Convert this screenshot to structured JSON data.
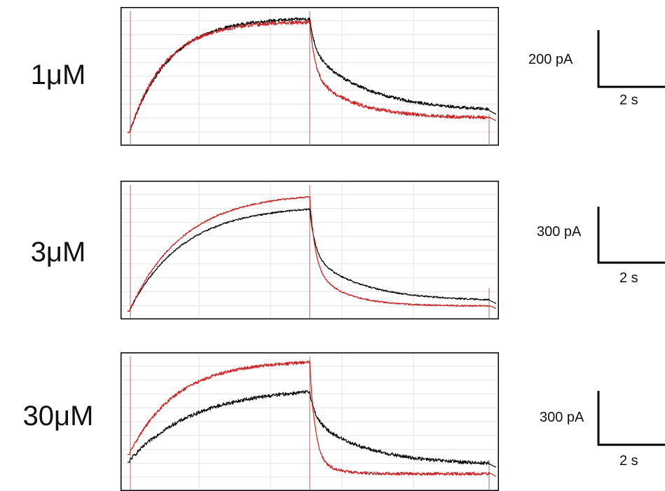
{
  "colors": {
    "control": "#000000",
    "treated": "#cc1f1f",
    "grid": "#e3e3e3",
    "stim": "#b06a6a",
    "frame": "#000000"
  },
  "panels": [
    {
      "label": "1μM",
      "scale_amp": "200 pA",
      "scale_time": "2 s"
    },
    {
      "label": "3μM",
      "scale_amp": "300 pA",
      "scale_time": "2 s"
    },
    {
      "label": "30μM",
      "scale_amp": "300 pA",
      "scale_time": "2 s"
    }
  ],
  "chart_data": [
    {
      "type": "line",
      "x_range": [
        0,
        10
      ],
      "y_range": [
        0,
        1
      ],
      "grid": true,
      "stimulus": [
        0,
        5
      ],
      "series": [
        {
          "color": "#000000",
          "baseline": 0.08,
          "peak": 0.95,
          "tau_rise": 1.1,
          "decay_end": 0.22,
          "tau_decay": 1.6,
          "fast_frac": 0.35,
          "noise": 0.012
        },
        {
          "color": "#cc1f1f",
          "baseline": 0.08,
          "peak": 0.92,
          "tau_rise": 1.0,
          "decay_end": 0.17,
          "tau_decay": 1.2,
          "fast_frac": 0.55,
          "noise": 0.014
        }
      ]
    },
    {
      "type": "line",
      "x_range": [
        0,
        10
      ],
      "y_range": [
        0,
        1
      ],
      "grid": true,
      "stimulus": [
        0,
        5
      ],
      "series": [
        {
          "color": "#000000",
          "baseline": 0.04,
          "peak": 0.84,
          "tau_rise": 1.5,
          "decay_end": 0.1,
          "tau_decay": 1.4,
          "fast_frac": 0.5,
          "noise": 0.006
        },
        {
          "color": "#cc1f1f",
          "baseline": 0.04,
          "peak": 0.94,
          "tau_rise": 1.5,
          "decay_end": 0.06,
          "tau_decay": 0.9,
          "fast_frac": 0.65,
          "noise": 0.006
        }
      ]
    },
    {
      "type": "line",
      "x_range": [
        0,
        10
      ],
      "y_range": [
        0,
        1
      ],
      "grid": true,
      "stimulus": [
        0,
        5
      ],
      "series": [
        {
          "color": "#000000",
          "baseline": 0.2,
          "peak": 0.76,
          "tau_rise": 1.8,
          "decay_end": 0.16,
          "tau_decay": 1.5,
          "fast_frac": 0.35,
          "noise": 0.014
        },
        {
          "color": "#cc1f1f",
          "baseline": 0.26,
          "peak": 0.97,
          "tau_rise": 1.3,
          "decay_end": 0.09,
          "tau_decay": 0.5,
          "fast_frac": 0.85,
          "noise": 0.012
        }
      ]
    }
  ]
}
